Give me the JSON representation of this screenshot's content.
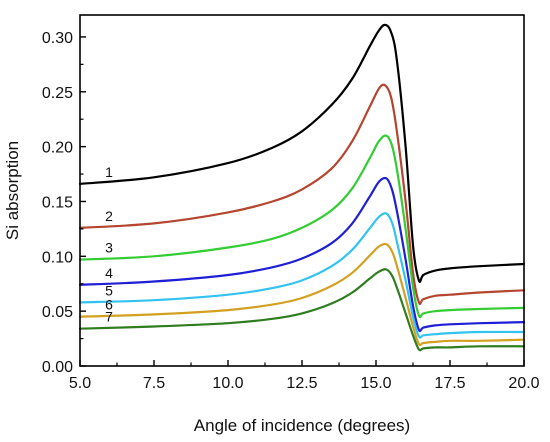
{
  "chart_data": {
    "type": "line",
    "title": "",
    "xlabel": "Angle of incidence (degrees)",
    "ylabel": "Si absorption",
    "xlim": [
      5.0,
      20.0
    ],
    "ylim": [
      0.0,
      0.32
    ],
    "xticks": [
      "5.0",
      "7.5",
      "10.0",
      "12.5",
      "15.0",
      "17.5",
      "20.0"
    ],
    "yticks": [
      "0.00",
      "0.05",
      "0.10",
      "0.15",
      "0.20",
      "0.25",
      "0.30"
    ],
    "grid": false,
    "legend": "inline curve numbers",
    "series": [
      {
        "name": "1",
        "color": "#000000",
        "x": [
          5.0,
          7.5,
          10.0,
          11.5,
          12.5,
          13.5,
          14.2,
          14.8,
          15.1,
          15.3,
          15.5,
          15.7,
          16.0,
          16.25,
          16.45,
          16.6,
          17.0,
          17.5,
          18.5,
          20.0
        ],
        "y": [
          0.166,
          0.172,
          0.185,
          0.199,
          0.214,
          0.238,
          0.262,
          0.292,
          0.306,
          0.311,
          0.305,
          0.28,
          0.2,
          0.11,
          0.078,
          0.083,
          0.087,
          0.089,
          0.091,
          0.093
        ]
      },
      {
        "name": "2",
        "color": "#b5452f",
        "x": [
          5.0,
          7.5,
          10.0,
          11.5,
          12.5,
          13.5,
          14.2,
          14.8,
          15.1,
          15.3,
          15.5,
          15.7,
          16.0,
          16.25,
          16.45,
          16.6,
          17.0,
          17.5,
          18.5,
          20.0
        ],
        "y": [
          0.126,
          0.13,
          0.14,
          0.15,
          0.161,
          0.18,
          0.205,
          0.237,
          0.253,
          0.256,
          0.246,
          0.215,
          0.15,
          0.085,
          0.058,
          0.061,
          0.064,
          0.065,
          0.067,
          0.069
        ]
      },
      {
        "name": "3",
        "color": "#33cc33",
        "x": [
          5.0,
          7.5,
          10.0,
          11.5,
          12.5,
          13.5,
          14.2,
          14.8,
          15.1,
          15.35,
          15.55,
          15.75,
          16.0,
          16.25,
          16.45,
          16.6,
          17.0,
          17.5,
          18.5,
          20.0
        ],
        "y": [
          0.097,
          0.1,
          0.108,
          0.116,
          0.126,
          0.142,
          0.162,
          0.19,
          0.205,
          0.21,
          0.2,
          0.172,
          0.125,
          0.072,
          0.046,
          0.048,
          0.05,
          0.051,
          0.052,
          0.053
        ]
      },
      {
        "name": "4",
        "color": "#1f1fd6",
        "x": [
          5.0,
          7.5,
          10.0,
          11.5,
          12.5,
          13.5,
          14.2,
          14.8,
          15.1,
          15.35,
          15.55,
          15.75,
          16.0,
          16.25,
          16.45,
          16.6,
          17.0,
          17.5,
          18.5,
          20.0
        ],
        "y": [
          0.074,
          0.077,
          0.083,
          0.09,
          0.098,
          0.112,
          0.13,
          0.155,
          0.168,
          0.171,
          0.16,
          0.135,
          0.097,
          0.055,
          0.033,
          0.035,
          0.037,
          0.038,
          0.039,
          0.04
        ]
      },
      {
        "name": "5",
        "color": "#33c3f0",
        "x": [
          5.0,
          7.5,
          10.0,
          11.5,
          12.5,
          13.5,
          14.2,
          14.8,
          15.1,
          15.35,
          15.55,
          15.75,
          16.0,
          16.25,
          16.45,
          16.6,
          17.0,
          17.5,
          18.5,
          20.0
        ],
        "y": [
          0.058,
          0.06,
          0.065,
          0.071,
          0.078,
          0.091,
          0.106,
          0.126,
          0.136,
          0.139,
          0.13,
          0.108,
          0.078,
          0.045,
          0.027,
          0.028,
          0.029,
          0.03,
          0.031,
          0.031
        ]
      },
      {
        "name": "6",
        "color": "#d4a020",
        "x": [
          5.0,
          7.5,
          10.0,
          11.5,
          12.5,
          13.5,
          14.2,
          14.8,
          15.1,
          15.35,
          15.55,
          15.75,
          16.0,
          16.25,
          16.45,
          16.6,
          17.0,
          17.5,
          18.5,
          20.0
        ],
        "y": [
          0.045,
          0.047,
          0.051,
          0.056,
          0.062,
          0.073,
          0.085,
          0.101,
          0.109,
          0.111,
          0.104,
          0.087,
          0.062,
          0.036,
          0.02,
          0.021,
          0.022,
          0.023,
          0.023,
          0.024
        ]
      },
      {
        "name": "7",
        "color": "#2e7d1e",
        "x": [
          5.0,
          7.5,
          10.0,
          11.5,
          12.5,
          13.5,
          14.2,
          14.8,
          15.1,
          15.35,
          15.55,
          15.75,
          16.0,
          16.25,
          16.45,
          16.6,
          17.0,
          17.5,
          18.5,
          20.0
        ],
        "y": [
          0.034,
          0.036,
          0.039,
          0.043,
          0.048,
          0.057,
          0.067,
          0.08,
          0.086,
          0.088,
          0.082,
          0.068,
          0.048,
          0.028,
          0.015,
          0.016,
          0.017,
          0.017,
          0.018,
          0.018
        ]
      }
    ]
  }
}
